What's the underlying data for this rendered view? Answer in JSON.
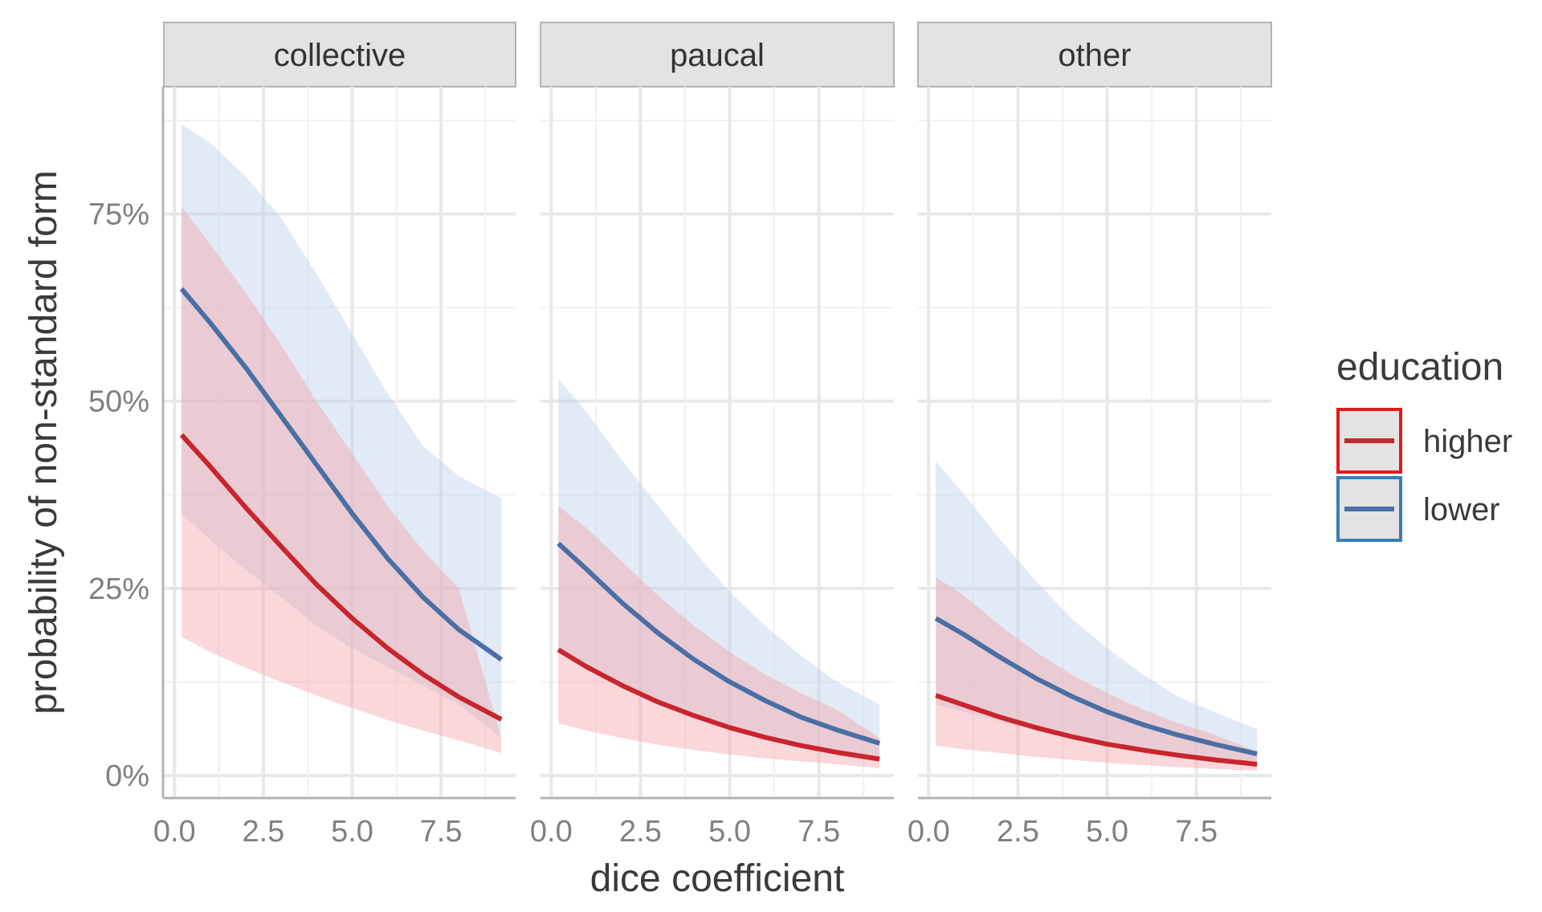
{
  "chart_data": {
    "type": "line",
    "facet_labels": [
      "collective",
      "paucal",
      "other"
    ],
    "xlabel": "dice coefficient",
    "ylabel": "probability of non-standard form",
    "xlim": [
      -0.3,
      9.6
    ],
    "ylim": [
      -3,
      92
    ],
    "x_ticks": [
      0.0,
      2.5,
      5.0,
      7.5
    ],
    "x_tick_labels": [
      "0.0",
      "2.5",
      "5.0",
      "7.5"
    ],
    "y_ticks": [
      0,
      25,
      50,
      75
    ],
    "y_tick_labels": [
      "0%",
      "25%",
      "50%",
      "75%"
    ],
    "grid": true,
    "legend": {
      "title": "education",
      "position": "right",
      "entries": [
        {
          "label": "higher",
          "color": "#c8252c"
        },
        {
          "label": "lower",
          "color": "#4a6fa5"
        }
      ]
    },
    "colors": {
      "higher_line": "#c8252c",
      "higher_band": "#f4a6ad",
      "lower_line": "#4a6fa5",
      "lower_band": "#b9cee6",
      "strip_fill": "#e3e3e3",
      "strip_border": "#b3b3b3",
      "grid_major": "#e8e8e8",
      "grid_minor": "#f1f1f1"
    },
    "x": [
      0.2,
      1.0,
      2.0,
      3.0,
      4.0,
      5.0,
      6.0,
      7.0,
      8.0,
      9.2
    ],
    "panels": [
      {
        "name": "collective",
        "series": [
          {
            "name": "higher",
            "values": [
              45.5,
              41.3,
              35.8,
              30.6,
              25.5,
              21.0,
              17.0,
              13.5,
              10.5,
              7.5
            ],
            "lower": [
              18.5,
              16.5,
              14.4,
              12.5,
              10.7,
              9.0,
              7.4,
              6.0,
              4.7,
              3.0
            ],
            "upper": [
              76.0,
              71.0,
              64.5,
              57.5,
              50.0,
              43.0,
              36.0,
              30.0,
              25.0,
              5.0
            ]
          },
          {
            "name": "lower",
            "values": [
              65.0,
              60.5,
              54.5,
              48.0,
              41.5,
              35.0,
              29.0,
              23.8,
              19.5,
              15.5
            ],
            "lower": [
              35.0,
              31.5,
              27.5,
              23.8,
              20.0,
              17.0,
              14.5,
              12.0,
              9.5,
              5.0
            ],
            "upper": [
              87.0,
              84.5,
              80.0,
              74.5,
              67.0,
              59.0,
              51.0,
              44.0,
              40.0,
              37.0
            ]
          }
        ]
      },
      {
        "name": "paucal",
        "series": [
          {
            "name": "higher",
            "values": [
              16.8,
              14.5,
              12.0,
              9.8,
              8.0,
              6.4,
              5.1,
              4.0,
              3.1,
              2.2
            ],
            "lower": [
              7.0,
              6.0,
              5.0,
              4.1,
              3.4,
              2.8,
              2.3,
              1.9,
              1.5,
              1.0
            ],
            "upper": [
              36.0,
              33.0,
              28.5,
              24.0,
              20.0,
              16.5,
              13.5,
              11.0,
              8.8,
              5.0
            ]
          },
          {
            "name": "lower",
            "values": [
              31.0,
              27.5,
              23.0,
              19.0,
              15.5,
              12.5,
              10.0,
              7.8,
              6.1,
              4.3
            ],
            "lower": [
              16.5,
              14.3,
              12.0,
              9.9,
              8.1,
              6.6,
              5.3,
              4.2,
              3.3,
              2.2
            ],
            "upper": [
              53.0,
              48.5,
              42.0,
              36.0,
              30.0,
              24.5,
              20.0,
              16.0,
              12.5,
              9.5
            ]
          }
        ]
      },
      {
        "name": "other",
        "series": [
          {
            "name": "higher",
            "values": [
              10.7,
              9.4,
              7.8,
              6.4,
              5.2,
              4.2,
              3.4,
              2.7,
              2.1,
              1.5
            ],
            "lower": [
              4.0,
              3.5,
              3.0,
              2.5,
              2.1,
              1.7,
              1.4,
              1.1,
              0.9,
              0.6
            ],
            "upper": [
              26.5,
              24.0,
              20.0,
              16.5,
              13.5,
              11.0,
              8.8,
              7.0,
              5.5,
              3.2
            ]
          },
          {
            "name": "lower",
            "values": [
              21.0,
              18.8,
              15.8,
              13.0,
              10.6,
              8.5,
              6.8,
              5.4,
              4.2,
              2.9
            ],
            "lower": [
              9.5,
              8.5,
              7.2,
              6.0,
              5.0,
              4.1,
              3.3,
              2.7,
              2.1,
              1.4
            ],
            "upper": [
              42.0,
              37.5,
              31.5,
              26.0,
              21.0,
              17.0,
              13.5,
              10.5,
              8.5,
              6.2
            ]
          }
        ]
      }
    ]
  }
}
